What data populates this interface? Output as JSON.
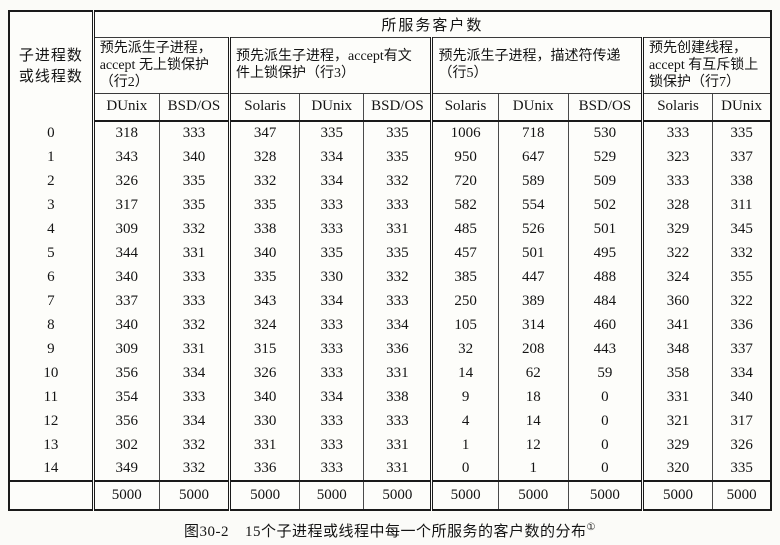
{
  "table": {
    "top_header": "所服务客户数",
    "corner_header": {
      "line1": "子进程数",
      "line2": "或线程数"
    },
    "groups": [
      {
        "label": "预先派生子进程，accept 无上锁保护（行2）",
        "cols": [
          "DUnix",
          "BSD/OS"
        ]
      },
      {
        "label": "预先派生子进程，accept有文件上锁保护（行3）",
        "cols": [
          "Solaris",
          "DUnix",
          "BSD/OS"
        ]
      },
      {
        "label": "预先派生子进程，描述符传递（行5）",
        "cols": [
          "Solaris",
          "DUnix",
          "BSD/OS"
        ]
      },
      {
        "label": "预先创建线程，accept 有互斥锁上锁保护（行7）",
        "cols": [
          "Solaris",
          "DUnix"
        ]
      }
    ],
    "rows": [
      {
        "label": "0",
        "values": [
          "318",
          "333",
          "347",
          "335",
          "335",
          "1006",
          "718",
          "530",
          "333",
          "335"
        ]
      },
      {
        "label": "1",
        "values": [
          "343",
          "340",
          "328",
          "334",
          "335",
          "950",
          "647",
          "529",
          "323",
          "337"
        ]
      },
      {
        "label": "2",
        "values": [
          "326",
          "335",
          "332",
          "334",
          "332",
          "720",
          "589",
          "509",
          "333",
          "338"
        ]
      },
      {
        "label": "3",
        "values": [
          "317",
          "335",
          "335",
          "333",
          "333",
          "582",
          "554",
          "502",
          "328",
          "311"
        ]
      },
      {
        "label": "4",
        "values": [
          "309",
          "332",
          "338",
          "333",
          "331",
          "485",
          "526",
          "501",
          "329",
          "345"
        ]
      },
      {
        "label": "5",
        "values": [
          "344",
          "331",
          "340",
          "335",
          "335",
          "457",
          "501",
          "495",
          "322",
          "332"
        ]
      },
      {
        "label": "6",
        "values": [
          "340",
          "333",
          "335",
          "330",
          "332",
          "385",
          "447",
          "488",
          "324",
          "355"
        ]
      },
      {
        "label": "7",
        "values": [
          "337",
          "333",
          "343",
          "334",
          "333",
          "250",
          "389",
          "484",
          "360",
          "322"
        ]
      },
      {
        "label": "8",
        "values": [
          "340",
          "332",
          "324",
          "333",
          "334",
          "105",
          "314",
          "460",
          "341",
          "336"
        ]
      },
      {
        "label": "9",
        "values": [
          "309",
          "331",
          "315",
          "333",
          "336",
          "32",
          "208",
          "443",
          "348",
          "337"
        ]
      },
      {
        "label": "10",
        "values": [
          "356",
          "334",
          "326",
          "333",
          "331",
          "14",
          "62",
          "59",
          "358",
          "334"
        ]
      },
      {
        "label": "11",
        "values": [
          "354",
          "333",
          "340",
          "334",
          "338",
          "9",
          "18",
          "0",
          "331",
          "340"
        ]
      },
      {
        "label": "12",
        "values": [
          "356",
          "334",
          "330",
          "333",
          "333",
          "4",
          "14",
          "0",
          "321",
          "317"
        ]
      },
      {
        "label": "13",
        "values": [
          "302",
          "332",
          "331",
          "333",
          "331",
          "1",
          "12",
          "0",
          "329",
          "326"
        ]
      },
      {
        "label": "14",
        "values": [
          "349",
          "332",
          "336",
          "333",
          "331",
          "0",
          "1",
          "0",
          "320",
          "335"
        ]
      }
    ],
    "totals": {
      "label": "",
      "values": [
        "5000",
        "5000",
        "5000",
        "5000",
        "5000",
        "5000",
        "5000",
        "5000",
        "5000",
        "5000"
      ]
    }
  },
  "caption": {
    "figure_label": "图30-2",
    "text": "15个子进程或线程中每一个所服务的客户数的分布",
    "footnote_mark": "①"
  }
}
